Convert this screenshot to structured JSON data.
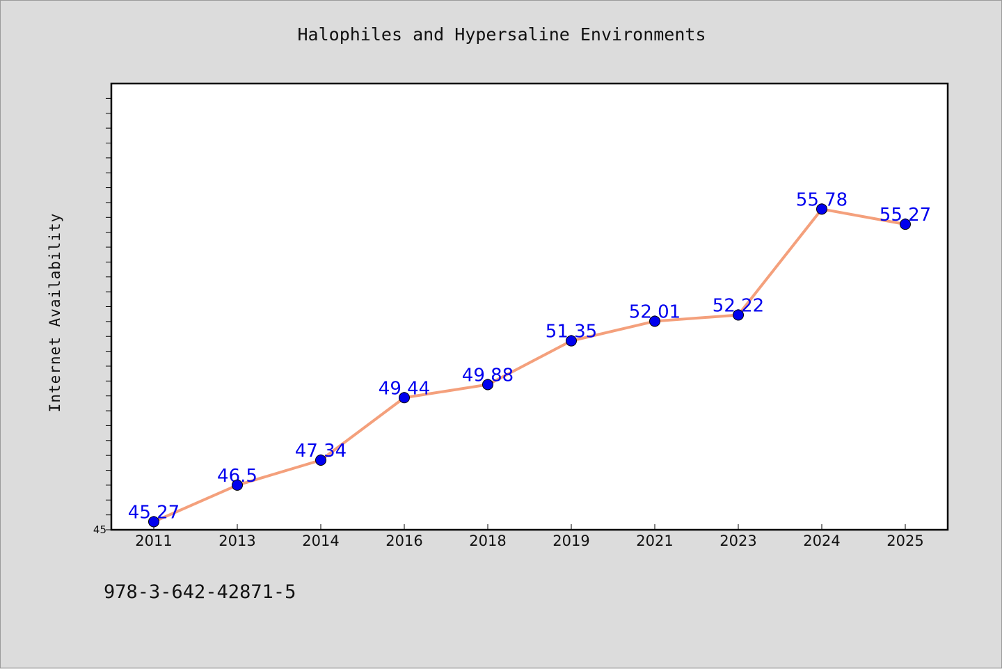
{
  "chart_data": {
    "type": "line",
    "title": "Halophiles and Hypersaline Environments",
    "xlabel": "",
    "ylabel": "Internet Availability",
    "categories": [
      "2011",
      "2013",
      "2014",
      "2016",
      "2018",
      "2019",
      "2021",
      "2023",
      "2024",
      "2025"
    ],
    "series": [
      {
        "values": [
          45.27,
          46.5,
          47.34,
          49.44,
          49.88,
          51.35,
          52.01,
          52.22,
          55.78,
          55.27
        ],
        "labels": [
          "45.27",
          "46.5",
          "47.34",
          "49.44",
          "49.88",
          "51.35",
          "52.01",
          "52.22",
          "55.78",
          "55.27"
        ]
      }
    ],
    "ylim": [
      45,
      60
    ],
    "y_tick_labels": [
      "45"
    ],
    "grid": false,
    "line_color": "#f4a07c",
    "marker_color": "#0000ee",
    "label_color": "#0000ee"
  },
  "footer": {
    "isbn": "978-3-642-42871-5"
  }
}
